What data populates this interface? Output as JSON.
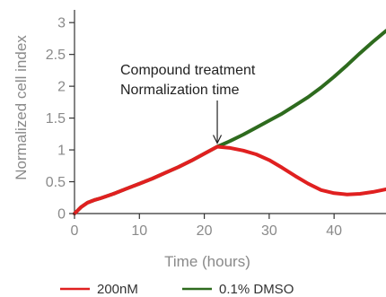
{
  "chart_data": {
    "type": "line",
    "xlabel": "Time (hours)",
    "ylabel": "Normalized cell index",
    "xlim": [
      0,
      48
    ],
    "ylim": [
      0,
      3.2
    ],
    "xticks": [
      0,
      10,
      20,
      30,
      40
    ],
    "yticks": [
      0,
      0.5,
      1,
      1.5,
      2,
      2.5,
      3
    ],
    "xtick_labels": [
      "0",
      "10",
      "20",
      "30",
      "40"
    ],
    "ytick_labels": [
      "0",
      "0.5",
      "1",
      "1.5",
      "2",
      "2.5",
      "3"
    ],
    "grid": false,
    "legend_position": "bottom",
    "annotation": {
      "line1": "Compound treatment",
      "line2": "Normalization time",
      "arrow_x": 22,
      "arrow_y": 1.05
    },
    "series": [
      {
        "name": "0.1% DMSO",
        "color": "#2e6b1e",
        "x": [
          0,
          0.5,
          1,
          2,
          3,
          4,
          6,
          8,
          10,
          12,
          14,
          16,
          18,
          20,
          22,
          24,
          26,
          28,
          30,
          32,
          34,
          36,
          38,
          40,
          42,
          44,
          46,
          48
        ],
        "y": [
          0,
          0.05,
          0.1,
          0.17,
          0.21,
          0.24,
          0.31,
          0.39,
          0.47,
          0.55,
          0.64,
          0.73,
          0.83,
          0.94,
          1.05,
          1.14,
          1.24,
          1.35,
          1.46,
          1.57,
          1.7,
          1.83,
          1.98,
          2.15,
          2.33,
          2.52,
          2.7,
          2.87
        ]
      },
      {
        "name": "200nM",
        "color": "#e02020",
        "x": [
          0,
          0.5,
          1,
          2,
          3,
          4,
          6,
          8,
          10,
          12,
          14,
          16,
          18,
          20,
          22,
          24,
          26,
          28,
          30,
          32,
          34,
          36,
          38,
          40,
          42,
          44,
          46,
          48
        ],
        "y": [
          0,
          0.05,
          0.1,
          0.17,
          0.21,
          0.24,
          0.31,
          0.39,
          0.47,
          0.55,
          0.64,
          0.73,
          0.83,
          0.94,
          1.05,
          1.03,
          0.99,
          0.93,
          0.84,
          0.72,
          0.59,
          0.47,
          0.37,
          0.32,
          0.3,
          0.31,
          0.34,
          0.38
        ]
      }
    ]
  },
  "legend": [
    {
      "label": "200nM",
      "color": "#e02020"
    },
    {
      "label": "0.1% DMSO",
      "color": "#2e6b1e"
    }
  ]
}
